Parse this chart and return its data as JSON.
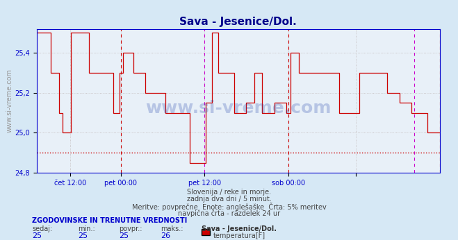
{
  "title": "Sava - Jesenice/Dol.",
  "title_color": "#00008B",
  "bg_color": "#d6e8f5",
  "plot_bg_color": "#e8f0f8",
  "grid_color": "#c0b8b8",
  "line_color": "#cc0000",
  "hline_color": "#cc0000",
  "vline_colors": [
    "#cc0000",
    "#cc0000",
    "#cc0000",
    "#cc0000"
  ],
  "magenta_vlines": [
    0.4167,
    0.9375
  ],
  "red_vlines": [
    0.2083,
    0.625,
    1.0
  ],
  "ylim": [
    24.8,
    25.52
  ],
  "yticks": [
    24.8,
    25.0,
    25.2,
    25.4
  ],
  "ytick_labels": [
    "24,8",
    "25,0",
    "25,2",
    "25,4"
  ],
  "xtick_positions": [
    0.0833,
    0.2083,
    0.4167,
    0.625,
    0.7917,
    1.0
  ],
  "xtick_labels": [
    "čet 12:00",
    "pet 00:00",
    "pet 12:00",
    "sob 00:00",
    "",
    ""
  ],
  "hline_y": 24.9,
  "watermark": "www.si-vreme.com",
  "subtitle_lines": [
    "Slovenija / reke in morje.",
    "zadnja dva dni / 5 minut.",
    "Meritve: povprečne  Enote: anglešaške  Črta: 5% meritev",
    "navpična črta - razdelek 24 ur"
  ],
  "legend_title": "ZGODOVINSKE IN TRENUTNE VREDNOSTI",
  "legend_labels": [
    "sedaj:",
    "min.:",
    "povpr.:",
    "maks.:"
  ],
  "legend_values": [
    "25",
    "25",
    "25",
    "26"
  ],
  "legend_series": "Sava - Jesenice/Dol.",
  "legend_param": "temperatura[F]",
  "legend_color": "#cc0000",
  "ylabel": "www.si-vreme.com",
  "data_x": [
    0,
    0.01,
    0.01,
    0.035,
    0.035,
    0.055,
    0.055,
    0.065,
    0.065,
    0.08,
    0.08,
    0.085,
    0.085,
    0.13,
    0.13,
    0.19,
    0.19,
    0.205,
    0.205,
    0.215,
    0.215,
    0.24,
    0.24,
    0.27,
    0.27,
    0.32,
    0.32,
    0.38,
    0.38,
    0.395,
    0.395,
    0.41,
    0.41,
    0.415,
    0.415,
    0.42,
    0.42,
    0.435,
    0.435,
    0.45,
    0.45,
    0.49,
    0.49,
    0.52,
    0.52,
    0.54,
    0.54,
    0.56,
    0.56,
    0.59,
    0.59,
    0.62,
    0.62,
    0.625,
    0.625,
    0.63,
    0.63,
    0.65,
    0.65,
    0.71,
    0.71,
    0.75,
    0.75,
    0.8,
    0.8,
    0.83,
    0.83,
    0.87,
    0.87,
    0.9,
    0.9,
    0.93,
    0.93,
    0.97,
    0.97,
    1.0
  ],
  "data_y": [
    25.5,
    25.5,
    25.5,
    25.5,
    25.3,
    25.3,
    25.1,
    25.1,
    25.0,
    25.0,
    25.0,
    25.0,
    25.5,
    25.5,
    25.3,
    25.3,
    25.1,
    25.1,
    25.3,
    25.3,
    25.4,
    25.4,
    25.3,
    25.3,
    25.2,
    25.2,
    25.1,
    25.1,
    24.85,
    24.85,
    24.85,
    24.85,
    24.85,
    24.85,
    24.85,
    24.85,
    25.15,
    25.15,
    25.5,
    25.5,
    25.3,
    25.3,
    25.1,
    25.1,
    25.15,
    25.15,
    25.3,
    25.3,
    25.1,
    25.1,
    25.15,
    25.15,
    25.1,
    25.1,
    25.1,
    25.1,
    25.4,
    25.4,
    25.3,
    25.3,
    25.3,
    25.3,
    25.1,
    25.1,
    25.3,
    25.3,
    25.3,
    25.3,
    25.2,
    25.2,
    25.15,
    25.15,
    25.1,
    25.1,
    25.0,
    25.0
  ]
}
